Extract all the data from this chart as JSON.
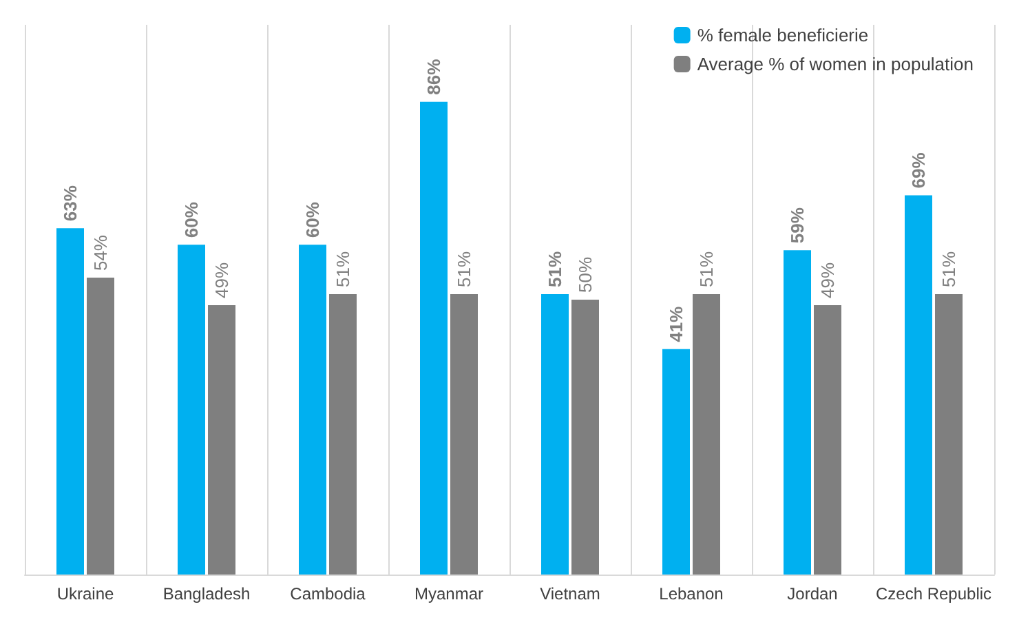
{
  "chart_data": {
    "type": "bar",
    "categories": [
      "Ukraine",
      "Bangladesh",
      "Cambodia",
      "Myanmar",
      "Vietnam",
      "Lebanon",
      "Jordan",
      "Czech Republic"
    ],
    "series": [
      {
        "name": "% female beneficierie",
        "color": "#00b0f0",
        "values": [
          63,
          60,
          60,
          86,
          51,
          41,
          59,
          69
        ],
        "value_labels": [
          "63%",
          "60%",
          "60%",
          "86%",
          "51%",
          "41%",
          "59%",
          "69%"
        ]
      },
      {
        "name": "Average % of women in population",
        "color": "#7f7f7f",
        "values": [
          54,
          49,
          51,
          51,
          50,
          51,
          49,
          51
        ],
        "value_labels": [
          "54%",
          "49%",
          "51%",
          "51%",
          "50%",
          "51%",
          "49%",
          "51%"
        ]
      }
    ],
    "grid": "x",
    "legend": "top right",
    "tick_labels": "x"
  }
}
